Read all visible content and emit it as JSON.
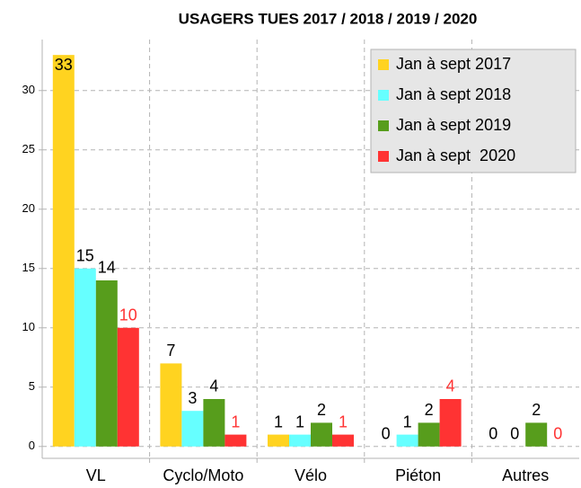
{
  "chart_data": {
    "type": "bar",
    "title": "USAGERS TUES 2017 / 2018 / 2019 / 2020",
    "categories": [
      "VL",
      "Cyclo/Moto",
      "Vélo",
      "Piéton",
      "Autres"
    ],
    "series": [
      {
        "name": "Jan à sept 2017",
        "color": "#ffd320",
        "label_color": "#000000",
        "values": [
          33,
          7,
          1,
          0,
          0
        ]
      },
      {
        "name": "Jan à sept 2018",
        "color": "#66ffff",
        "label_color": "#000000",
        "values": [
          15,
          3,
          1,
          1,
          0
        ]
      },
      {
        "name": "Jan à sept 2019",
        "color": "#579d1c",
        "label_color": "#000000",
        "values": [
          14,
          4,
          2,
          2,
          2
        ]
      },
      {
        "name": "Jan à sept  2020",
        "color": "#ff3333",
        "label_color": "#ff3333",
        "values": [
          10,
          1,
          1,
          4,
          0
        ]
      }
    ],
    "ylim": [
      -1,
      34.3
    ],
    "yticks": [
      0,
      5,
      10,
      15,
      20,
      25,
      30
    ],
    "grid": true,
    "legend": "top-right"
  }
}
